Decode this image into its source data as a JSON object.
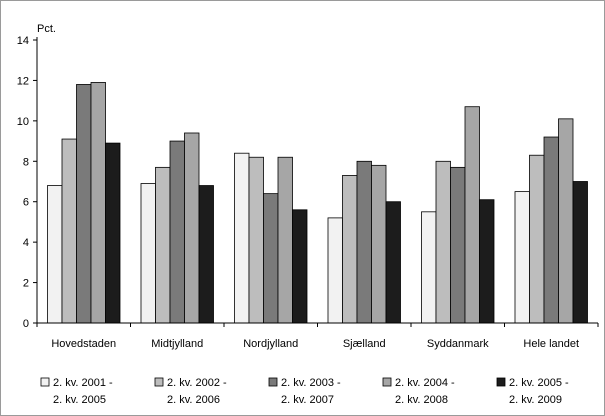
{
  "chart_data": {
    "type": "bar",
    "unit_label": "Pct.",
    "title": "",
    "xlabel": "",
    "ylabel": "",
    "ylim": [
      0,
      14
    ],
    "yticks": [
      0,
      2,
      4,
      6,
      8,
      10,
      12,
      14
    ],
    "grid": false,
    "legend_position": "bottom",
    "categories": [
      "Hovedstaden",
      "Midtjylland",
      "Nordjylland",
      "Sjælland",
      "Syddanmark",
      "Hele landet"
    ],
    "series": [
      {
        "name": [
          "2. kv. 2001 -",
          "2. kv. 2005"
        ],
        "color": "#f2f2f2",
        "values": [
          6.8,
          6.9,
          8.4,
          5.2,
          5.5,
          6.5
        ]
      },
      {
        "name": [
          "2. kv. 2002 -",
          "2. kv. 2006"
        ],
        "color": "#bdbdbd",
        "values": [
          9.1,
          7.7,
          8.2,
          7.3,
          8.0,
          8.3
        ]
      },
      {
        "name": [
          "2. kv. 2003 -",
          "2. kv. 2007"
        ],
        "color": "#7a7a7a",
        "values": [
          11.8,
          9.0,
          6.4,
          8.0,
          7.7,
          9.2
        ]
      },
      {
        "name": [
          "2. kv. 2004 -",
          "2. kv. 2008"
        ],
        "color": "#a6a6a6",
        "values": [
          11.9,
          9.4,
          8.2,
          7.8,
          10.7,
          10.1
        ]
      },
      {
        "name": [
          "2. kv. 2005 -",
          "2. kv. 2009"
        ],
        "color": "#1c1c1c",
        "values": [
          8.9,
          6.8,
          5.6,
          6.0,
          6.1,
          7.0
        ]
      }
    ]
  }
}
